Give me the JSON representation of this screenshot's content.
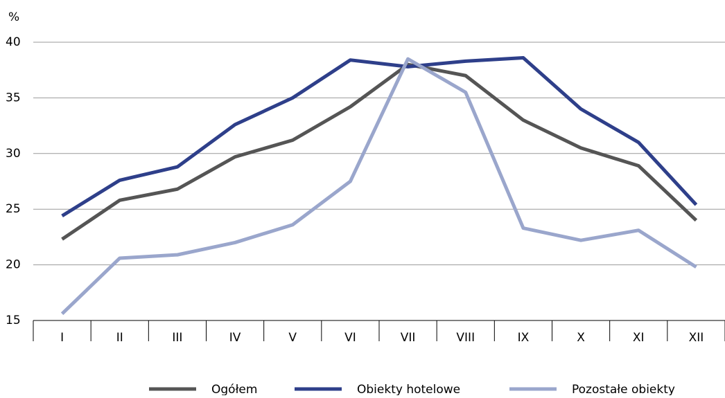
{
  "chart_data": {
    "type": "line",
    "y_label": "%",
    "categories": [
      "I",
      "II",
      "III",
      "IV",
      "V",
      "VI",
      "VII",
      "VIII",
      "IX",
      "X",
      "XI",
      "XII"
    ],
    "series": [
      {
        "name": "Ogółem",
        "color": "#555555",
        "values": [
          22.3,
          25.8,
          26.8,
          29.7,
          31.2,
          34.2,
          38.0,
          37.0,
          33.0,
          30.5,
          28.9,
          24.0
        ]
      },
      {
        "name": "Obiekty hotelowe",
        "color": "#2e3f8a",
        "values": [
          24.4,
          27.6,
          28.8,
          32.6,
          35.0,
          38.4,
          37.8,
          38.3,
          38.6,
          34.0,
          31.0,
          25.4
        ]
      },
      {
        "name": "Pozostałe obiekty",
        "color": "#9aa6cc",
        "values": [
          15.6,
          20.6,
          20.9,
          22.0,
          23.6,
          27.5,
          38.5,
          35.5,
          23.3,
          22.2,
          23.1,
          19.8
        ]
      }
    ],
    "ylim": [
      15,
      40
    ],
    "yticks": [
      15,
      20,
      25,
      30,
      35,
      40
    ],
    "grid": true,
    "legend": "bottom"
  }
}
